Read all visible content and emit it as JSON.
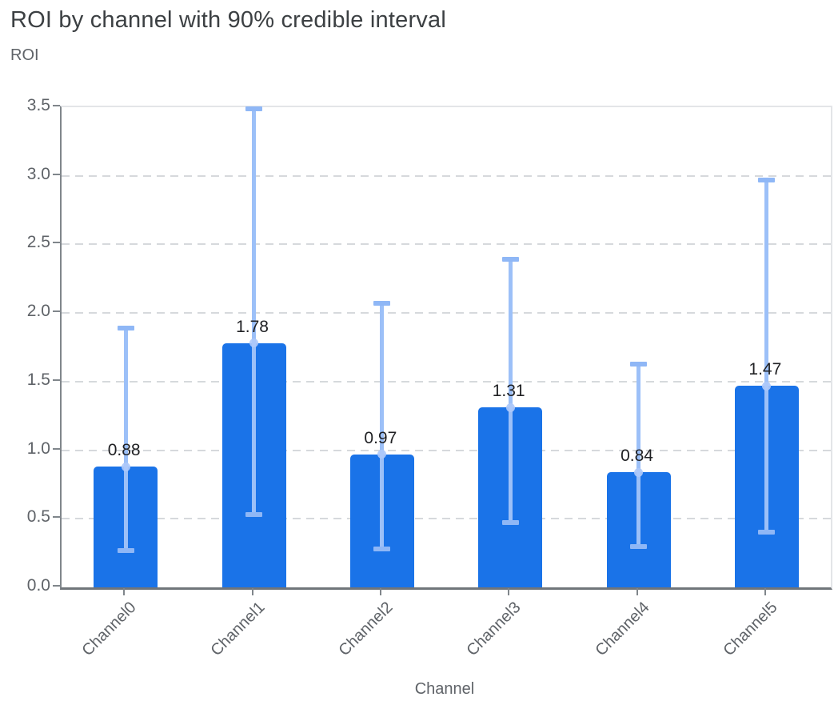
{
  "header": {
    "title": "ROI by channel with 90% credible interval"
  },
  "axes": {
    "y_title": "ROI",
    "x_title": "Channel"
  },
  "colors": {
    "bar": "#1a73e8",
    "error_line": "#9cc0f8",
    "error_cap": "#8fb7f6",
    "marker": "rgba(174,201,250,0.92)",
    "grid": "#d6d9dc",
    "axis": "#80868b",
    "border": "#e3e5e8",
    "title": "#3c4043",
    "tick_label": "#5f6368",
    "value_label": "#202124"
  },
  "chart_data": {
    "type": "bar",
    "title": "ROI by channel with 90% credible interval",
    "xlabel": "Channel",
    "ylabel": "ROI",
    "categories": [
      "Channel0",
      "Channel1",
      "Channel2",
      "Channel3",
      "Channel4",
      "Channel5"
    ],
    "series": [
      {
        "name": "ROI",
        "values": [
          0.88,
          1.78,
          0.97,
          1.31,
          0.84,
          1.47
        ]
      }
    ],
    "value_labels": [
      "0.88",
      "1.78",
      "0.97",
      "1.31",
      "0.84",
      "1.47"
    ],
    "error_bars": {
      "label": "90% credible interval",
      "lower": [
        0.27,
        0.53,
        0.28,
        0.47,
        0.3,
        0.4
      ],
      "upper": [
        1.89,
        3.49,
        2.07,
        2.39,
        1.63,
        2.97
      ]
    },
    "ylim": [
      0,
      3.5
    ],
    "yticks": [
      0.0,
      0.5,
      1.0,
      1.5,
      2.0,
      2.5,
      3.0,
      3.5
    ],
    "grid": true,
    "legend": "none"
  }
}
